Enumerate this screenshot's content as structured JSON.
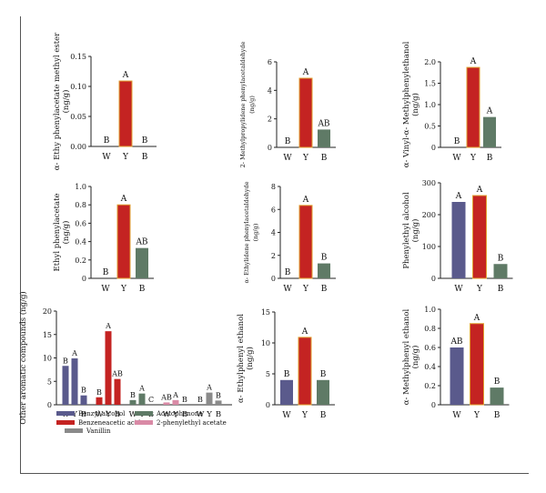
{
  "chart_data": [
    {
      "type": "bar",
      "ylabel": "α- Ethy phenylacetate methyl ester\n(ng/g)",
      "categories": [
        "W",
        "Y",
        "B"
      ],
      "values": [
        0,
        0.109,
        0
      ],
      "letters": [
        "B",
        "A",
        "B"
      ],
      "colors": [
        "#5a5a8c",
        "#c42322",
        "#5f7a66"
      ],
      "yticks": [
        0.0,
        0.05,
        0.1,
        0.15
      ],
      "ytick_labels": [
        "0.00",
        "0.05",
        "0.10",
        "0.15"
      ],
      "ylim": [
        0,
        0.15
      ]
    },
    {
      "type": "bar",
      "ylabel": "2- Methylpropylidene phenylacetaldehyde\n(ng/g)",
      "categories": [
        "W",
        "Y",
        "B"
      ],
      "values": [
        0,
        4.85,
        1.25
      ],
      "letters": [
        "B",
        "A",
        "AB"
      ],
      "colors": [
        "#5a5a8c",
        "#c42322",
        "#5f7a66"
      ],
      "yticks": [
        0,
        2,
        4,
        6
      ],
      "ytick_labels": [
        "0",
        "2",
        "4",
        "6"
      ],
      "ylim": [
        0,
        6
      ]
    },
    {
      "type": "bar",
      "ylabel": "α- Vinyl-α- Methylphenylethanol\n(ng/g)",
      "categories": [
        "W",
        "Y",
        "B"
      ],
      "values": [
        0,
        1.87,
        0.71
      ],
      "letters": [
        "B",
        "A",
        "A"
      ],
      "colors": [
        "#5a5a8c",
        "#c42322",
        "#5f7a66"
      ],
      "yticks": [
        0,
        0.5,
        1.0,
        1.5,
        2.0
      ],
      "ytick_labels": [
        "0",
        "0.5",
        "1.0",
        "1.5",
        "2.0"
      ],
      "ylim": [
        0,
        2.0
      ]
    },
    {
      "type": "bar",
      "ylabel": "Ethyl phenylacetate\n(ng/g)",
      "categories": [
        "W",
        "Y",
        "B"
      ],
      "values": [
        0,
        0.8,
        0.33
      ],
      "letters": [
        "B",
        "A",
        "AB"
      ],
      "colors": [
        "#5a5a8c",
        "#c42322",
        "#5f7a66"
      ],
      "yticks": [
        0,
        0.2,
        0.4,
        0.6,
        0.8,
        1.0
      ],
      "ytick_labels": [
        "0",
        "0.2",
        "0.4",
        "0.6",
        "0.8",
        "1.0"
      ],
      "ylim": [
        0,
        1.0
      ]
    },
    {
      "type": "bar",
      "ylabel": "α- Ethylidene phenylacetaldehyde\n(ng/g)",
      "categories": [
        "W",
        "Y",
        "B"
      ],
      "values": [
        0,
        6.35,
        1.3
      ],
      "letters": [
        "B",
        "A",
        "B"
      ],
      "colors": [
        "#5a5a8c",
        "#c42322",
        "#5f7a66"
      ],
      "yticks": [
        0,
        2,
        4,
        6,
        8
      ],
      "ytick_labels": [
        "0",
        "2",
        "4",
        "6",
        "8"
      ],
      "ylim": [
        0,
        8
      ]
    },
    {
      "type": "bar",
      "ylabel": "Phenylethyl alcohol\n(ng/g)",
      "categories": [
        "W",
        "Y",
        "B"
      ],
      "values": [
        240,
        260,
        45
      ],
      "letters": [
        "A",
        "A",
        "B"
      ],
      "colors": [
        "#5a5a8c",
        "#c42322",
        "#5f7a66"
      ],
      "yticks": [
        0,
        100,
        200,
        300
      ],
      "ytick_labels": [
        "0",
        "100",
        "200",
        "300"
      ],
      "ylim": [
        0,
        300
      ]
    },
    {
      "type": "bar",
      "ylabel": "Other aromatic compounds (ng/g)",
      "groups": [
        {
          "name": "Benzyl alcohol",
          "color": "#5a5a8c",
          "categories": [
            "W",
            "Y",
            "B"
          ],
          "values": [
            8.3,
            9.9,
            2.0
          ],
          "letters": [
            "B",
            "A",
            "B"
          ]
        },
        {
          "name": "Benzeneacetic acid",
          "color": "#c42322",
          "categories": [
            "W",
            "Y",
            "B"
          ],
          "values": [
            1.6,
            15.7,
            5.5
          ],
          "letters": [
            "B",
            "A",
            "AB"
          ]
        },
        {
          "name": "Acetophenone",
          "color": "#5f7a66",
          "categories": [
            "W",
            "Y",
            "B"
          ],
          "values": [
            1.0,
            2.4,
            0
          ],
          "letters": [
            "B",
            "A",
            "C"
          ]
        },
        {
          "name": "2-phenylethyl acetate",
          "color": "#d98aa6",
          "categories": [
            "W",
            "Y",
            "B"
          ],
          "values": [
            0.5,
            1.0,
            0
          ],
          "letters": [
            "AB",
            "A",
            "B"
          ]
        },
        {
          "name": "Vanillin",
          "color": "#8a8a8a",
          "categories": [
            "W",
            "Y",
            "B"
          ],
          "values": [
            0,
            2.6,
            0.9
          ],
          "letters": [
            "B",
            "A",
            "B"
          ]
        }
      ],
      "legend": [
        "Benzyl alcohol",
        "Benzeneacetic acid",
        "Vanillin",
        "Acetophenone",
        "2-phenylethyl acetate"
      ],
      "yticks": [
        0,
        5,
        10,
        15,
        20
      ],
      "ytick_labels": [
        "0",
        "5",
        "10",
        "15",
        "20"
      ],
      "ylim": [
        0,
        20
      ]
    },
    {
      "type": "bar",
      "ylabel": "α- Ethylphenyl ethanol\n(ng/g)",
      "categories": [
        "W",
        "Y",
        "B"
      ],
      "values": [
        4.0,
        10.9,
        4.0
      ],
      "letters": [
        "B",
        "A",
        "B"
      ],
      "colors": [
        "#5a5a8c",
        "#c42322",
        "#5f7a66"
      ],
      "yticks": [
        0,
        5,
        10,
        15
      ],
      "ytick_labels": [
        "0",
        "5",
        "10",
        "15"
      ],
      "ylim": [
        0,
        15
      ]
    },
    {
      "type": "bar",
      "ylabel": "α- Methylphenyl ethanol\n(ng/g)",
      "categories": [
        "W",
        "Y",
        "B"
      ],
      "values": [
        0.6,
        0.85,
        0.18
      ],
      "letters": [
        "AB",
        "A",
        "B"
      ],
      "colors": [
        "#5a5a8c",
        "#c42322",
        "#5f7a66"
      ],
      "yticks": [
        0,
        0.2,
        0.4,
        0.6,
        0.8,
        1.0
      ],
      "ytick_labels": [
        "0",
        "0.2",
        "0.4",
        "0.6",
        "0.8",
        "1.0"
      ],
      "ylim": [
        0,
        1.0
      ]
    }
  ]
}
